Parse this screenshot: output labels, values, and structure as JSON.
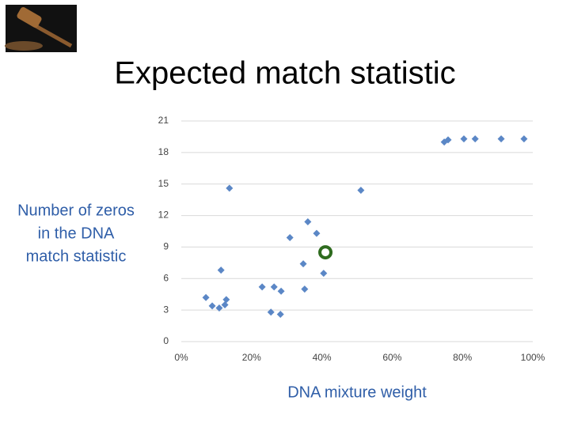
{
  "chart_data": {
    "type": "scatter",
    "title": "Expected match statistic",
    "x_label": "DNA mixture weight",
    "y_label": [
      "Number of zeros",
      "in the DNA",
      "match statistic"
    ],
    "color": "#5b87c6",
    "grid": true,
    "xlim": [
      0,
      100
    ],
    "xticks": [
      {
        "value": 0,
        "label": "0%"
      },
      {
        "value": 20,
        "label": "20%"
      },
      {
        "value": 40,
        "label": "40%"
      },
      {
        "value": 60,
        "label": "60%"
      },
      {
        "value": 80,
        "label": "80%"
      },
      {
        "value": 100,
        "label": "100%"
      }
    ],
    "ylim": [
      0,
      21
    ],
    "yticks": [
      0,
      3,
      6,
      9,
      12,
      15,
      18,
      21
    ],
    "x": [
      7,
      8.8,
      10.8,
      12.4,
      12.8,
      11.3,
      13.7,
      23,
      26.4,
      28.4,
      25.5,
      28.2,
      30.9,
      35.1,
      34.7,
      36,
      38.5,
      40.5,
      51.1,
      74.8,
      75.9,
      80.4,
      83.6,
      91,
      97.5
    ],
    "values": [
      4.2,
      3.4,
      3.2,
      3.5,
      4.0,
      6.8,
      14.6,
      5.2,
      5.2,
      4.8,
      2.8,
      2.6,
      9.9,
      5.0,
      7.4,
      11.4,
      10.3,
      6.5,
      14.4,
      19.0,
      19.2,
      19.3,
      19.3,
      19.3,
      19.3
    ],
    "highlight_point": {
      "x": 41,
      "y": 8.5,
      "color": "#2e6b1e"
    }
  }
}
